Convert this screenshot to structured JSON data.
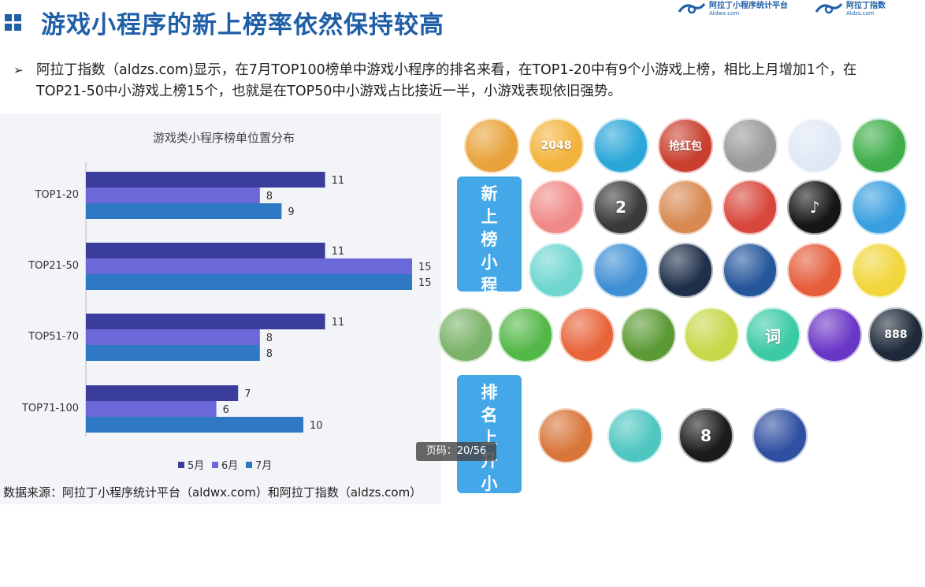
{
  "header": {
    "title": "游戏小程序的新上榜率依然保持较高",
    "brand1_name": "阿拉丁小程序统计平台",
    "brand1_url": "Aldwx.com",
    "brand2_name": "阿拉丁指数",
    "brand2_url": "Aldzs.com"
  },
  "body": {
    "bullet": "➢",
    "text": "阿拉丁指数（aldzs.com)显示，在7月TOP100榜单中游戏小程序的排名来看，在TOP1-20中有9个小游戏上榜，相比上月增加1个，在TOP21-50中小游戏上榜15个，也就是在TOP50中小游戏占比接近一半，小游戏表现依旧强势。"
  },
  "chart_data": {
    "type": "bar",
    "orientation": "horizontal",
    "title": "游戏类小程序榜单位置分布",
    "categories": [
      "TOP1-20",
      "TOP21-50",
      "TOP51-70",
      "TOP71-100"
    ],
    "series": [
      {
        "name": "5月",
        "values": [
          11,
          11,
          11,
          7
        ],
        "color": "#3a3d9c"
      },
      {
        "name": "6月",
        "values": [
          8,
          15,
          8,
          6
        ],
        "color": "#6b68d9"
      },
      {
        "name": "7月",
        "values": [
          9,
          15,
          8,
          10
        ],
        "color": "#2f78c4"
      }
    ],
    "xlim": [
      0,
      15
    ],
    "legend_position": "bottom",
    "grid": false
  },
  "source": "数据来源：阿拉丁小程序统计平台（aldwx.com）和阿拉丁指数（aldzs.com）",
  "sections": {
    "new_label": "新上榜小程序游戏",
    "rank_label": "排名上升小程序游戏"
  },
  "page_indicator": "页码：20/56",
  "icons": [
    {
      "name": "racing-car-game-icon",
      "color": "#e8a23a",
      "glyph": ""
    },
    {
      "name": "2048-game-icon",
      "color": "#f2b43c",
      "glyph": "2048"
    },
    {
      "name": "flappy-bird-game-icon",
      "color": "#2aa6d8",
      "glyph": ""
    },
    {
      "name": "hongbao-game-icon",
      "color": "#c9402f",
      "glyph": "抢红包"
    },
    {
      "name": "driving-game-icon",
      "color": "#9a9a9a",
      "glyph": ""
    },
    {
      "name": "tap-game-icon",
      "color": "#dfe8f4",
      "glyph": ""
    },
    {
      "name": "frog-game-icon",
      "color": "#3fae4a",
      "glyph": ""
    },
    {
      "name": "piggy-game-icon",
      "color": "#f08a88",
      "glyph": ""
    },
    {
      "name": "piano-tiles-game-icon",
      "color": "#3a3a3a",
      "glyph": "2"
    },
    {
      "name": "basketball-girl-game-icon",
      "color": "#d88a52",
      "glyph": ""
    },
    {
      "name": "grandma-game-icon",
      "color": "#d8473c",
      "glyph": ""
    },
    {
      "name": "music-note-game-icon",
      "color": "#161616",
      "glyph": "♪"
    },
    {
      "name": "chicken-game-icon",
      "color": "#3a9fe0",
      "glyph": ""
    },
    {
      "name": "blocks-game-icon",
      "color": "#6fd6d0",
      "glyph": ""
    },
    {
      "name": "airplane-game-icon",
      "color": "#3f8fd6",
      "glyph": ""
    },
    {
      "name": "balls-game-icon",
      "color": "#1f2f4a",
      "glyph": ""
    },
    {
      "name": "pixel-man-game-icon",
      "color": "#24569a",
      "glyph": ""
    },
    {
      "name": "car-race-game-icon",
      "color": "#e55d3a",
      "glyph": ""
    },
    {
      "name": "cube-face-game-icon",
      "color": "#f1d63c",
      "glyph": ""
    },
    {
      "name": "rooster-game-icon",
      "color": "#7bb36a",
      "glyph": ""
    },
    {
      "name": "soccer-game-icon",
      "color": "#53b848",
      "glyph": ""
    },
    {
      "name": "fish-game-icon",
      "color": "#e8653a",
      "glyph": ""
    },
    {
      "name": "corn-game-icon",
      "color": "#5c9a35",
      "glyph": ""
    },
    {
      "name": "gold-block-game-icon",
      "color": "#c6d84a",
      "glyph": ""
    },
    {
      "name": "word-game-icon",
      "color": "#3ccaa6",
      "glyph": "词"
    },
    {
      "name": "space-game-icon",
      "color": "#6a36c6",
      "glyph": ""
    },
    {
      "name": "football-888-game-icon",
      "color": "#1e2a3a",
      "glyph": "888"
    },
    {
      "name": "fortune-god-game-icon",
      "color": "#d8763a",
      "glyph": ""
    },
    {
      "name": "cat-game-icon",
      "color": "#4fc6c0",
      "glyph": ""
    },
    {
      "name": "8-ball-game-icon",
      "color": "#1b1b1b",
      "glyph": "8"
    },
    {
      "name": "bee-cat-game-icon",
      "color": "#2f4fa0",
      "glyph": ""
    }
  ]
}
